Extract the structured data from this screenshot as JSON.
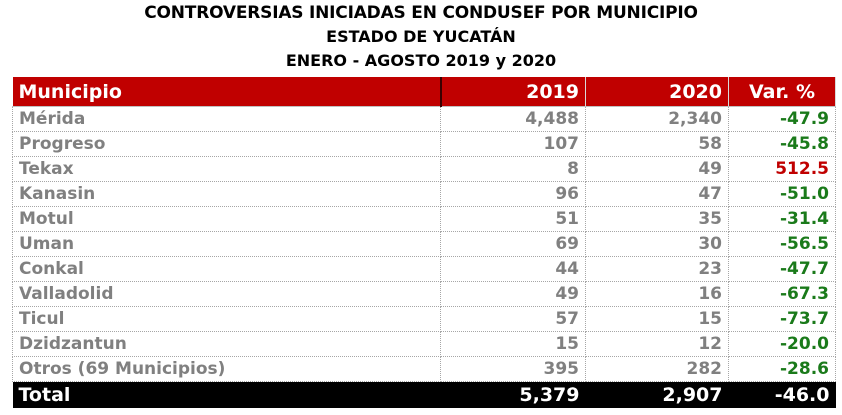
{
  "title": {
    "line1": "CONTROVERSIAS INICIADAS EN CONDUSEF POR MUNICIPIO",
    "line2": "ESTADO DE YUCATÁN",
    "line3": "ENERO - AGOSTO 2019 y 2020"
  },
  "colors": {
    "header_bg": "#c00000",
    "negative": "#1a7a1a",
    "positive": "#c00000",
    "total_bg": "#000000"
  },
  "table": {
    "headers": [
      "Municipio",
      "2019",
      "2020",
      "Var. %"
    ],
    "rows": [
      {
        "municipio": "Mérida",
        "y2019": "4,488",
        "y2020": "2,340",
        "var": "-47.9",
        "trend": "neg"
      },
      {
        "municipio": "Progreso",
        "y2019": "107",
        "y2020": "58",
        "var": "-45.8",
        "trend": "neg"
      },
      {
        "municipio": "Tekax",
        "y2019": "8",
        "y2020": "49",
        "var": "512.5",
        "trend": "pos"
      },
      {
        "municipio": "Kanasin",
        "y2019": "96",
        "y2020": "47",
        "var": "-51.0",
        "trend": "neg"
      },
      {
        "municipio": "Motul",
        "y2019": "51",
        "y2020": "35",
        "var": "-31.4",
        "trend": "neg"
      },
      {
        "municipio": "Uman",
        "y2019": "69",
        "y2020": "30",
        "var": "-56.5",
        "trend": "neg"
      },
      {
        "municipio": "Conkal",
        "y2019": "44",
        "y2020": "23",
        "var": "-47.7",
        "trend": "neg"
      },
      {
        "municipio": "Valladolid",
        "y2019": "49",
        "y2020": "16",
        "var": "-67.3",
        "trend": "neg"
      },
      {
        "municipio": "Ticul",
        "y2019": "57",
        "y2020": "15",
        "var": "-73.7",
        "trend": "neg"
      },
      {
        "municipio": "Dzidzantun",
        "y2019": "15",
        "y2020": "12",
        "var": "-20.0",
        "trend": "neg"
      },
      {
        "municipio": "Otros (69 Municipios)",
        "y2019": "395",
        "y2020": "282",
        "var": "-28.6",
        "trend": "neg"
      }
    ],
    "total": {
      "municipio": "Total",
      "y2019": "5,379",
      "y2020": "2,907",
      "var": "-46.0"
    }
  }
}
